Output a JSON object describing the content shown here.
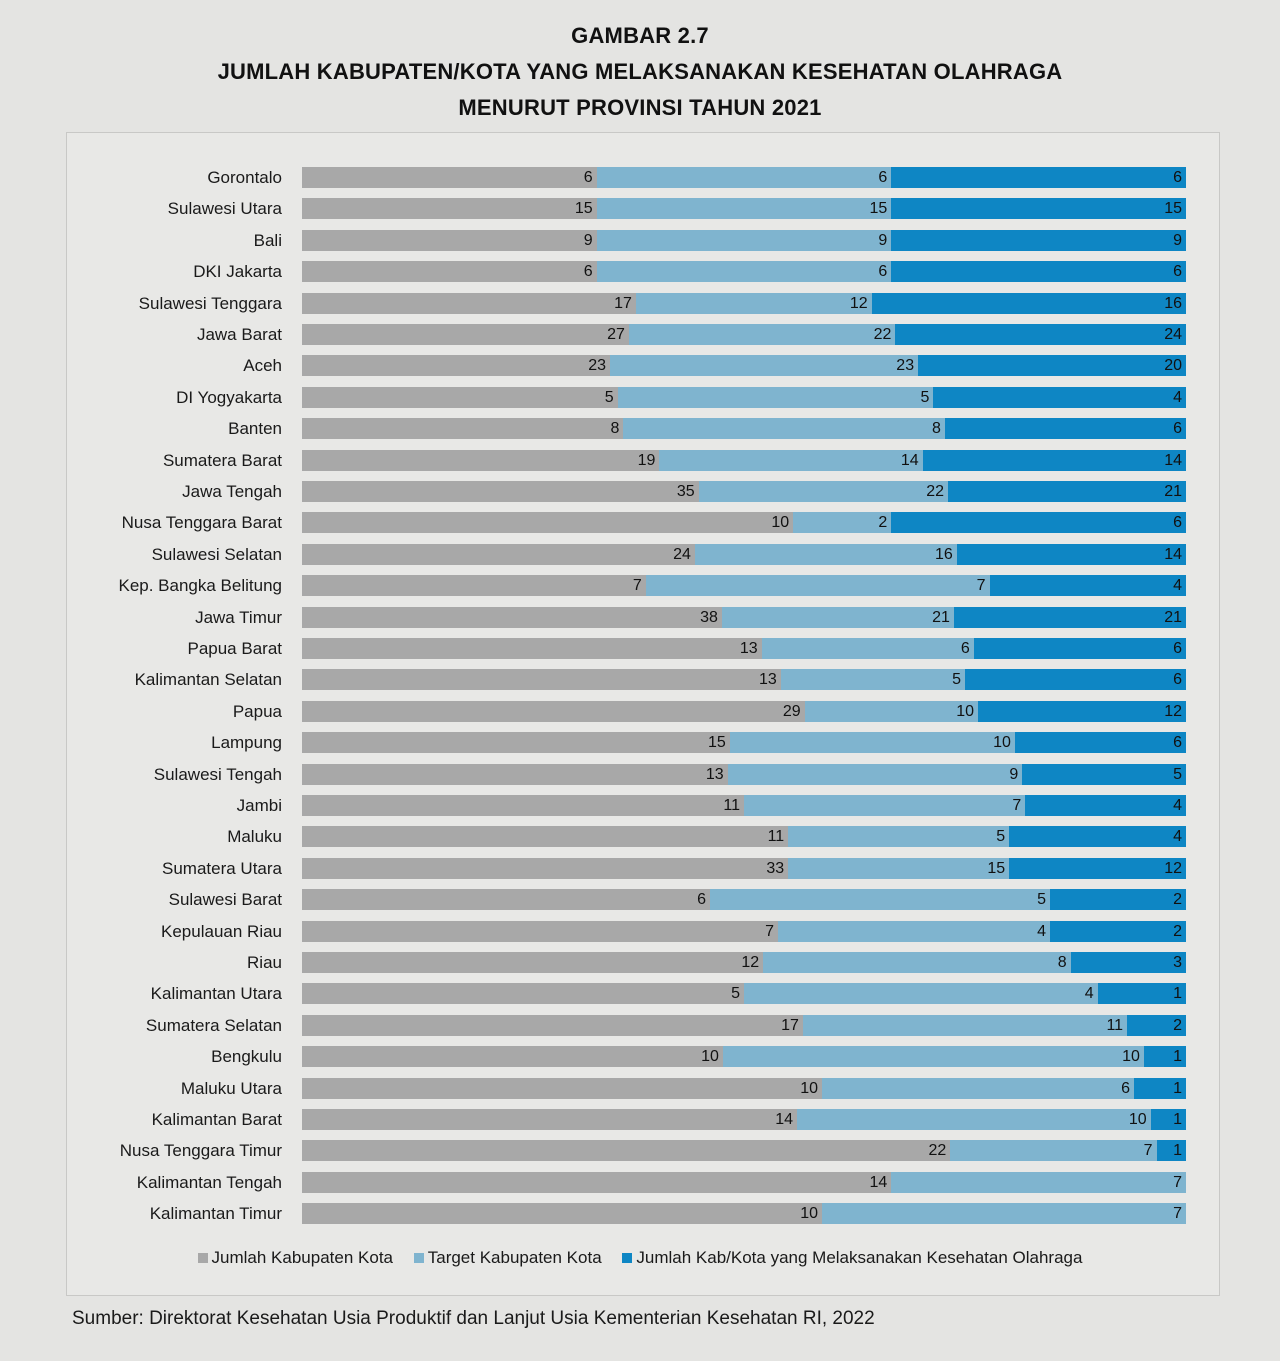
{
  "figure_number": "GAMBAR 2.7",
  "title_line1": "JUMLAH KABUPATEN/KOTA YANG MELAKSANAKAN KESEHATAN OLAHRAGA",
  "title_line2": "MENURUT PROVINSI TAHUN 2021",
  "source": "Sumber: Direktorat Kesehatan Usia Produktif dan Lanjut Usia Kementerian Kesehatan RI, 2022",
  "colors": {
    "jumlah": "#a8a8a8",
    "target": "#7fb4cf",
    "melaksanakan": "#0e86c4"
  },
  "chart_data": {
    "type": "bar",
    "orientation": "horizontal",
    "stacked": "100%",
    "title": "JUMLAH KABUPATEN/KOTA YANG MELAKSANAKAN KESEHATAN OLAHRAGA MENURUT PROVINSI TAHUN 2021",
    "xlabel": "",
    "ylabel": "",
    "grid": false,
    "legend_position": "bottom",
    "categories": [
      "Gorontalo",
      "Sulawesi Utara",
      "Bali",
      "DKI Jakarta",
      "Sulawesi Tenggara",
      "Jawa Barat",
      "Aceh",
      "DI Yogyakarta",
      "Banten",
      "Sumatera Barat",
      "Jawa Tengah",
      "Nusa Tenggara Barat",
      "Sulawesi Selatan",
      "Kep. Bangka Belitung",
      "Jawa Timur",
      "Papua Barat",
      "Kalimantan Selatan",
      "Papua",
      "Lampung",
      "Sulawesi Tengah",
      "Jambi",
      "Maluku",
      "Sumatera Utara",
      "Sulawesi Barat",
      "Kepulauan Riau",
      "Riau",
      "Kalimantan Utara",
      "Sumatera Selatan",
      "Bengkulu",
      "Maluku Utara",
      "Kalimantan Barat",
      "Nusa Tenggara Timur",
      "Kalimantan Tengah",
      "Kalimantan Timur"
    ],
    "series": [
      {
        "name": "Jumlah Kabupaten Kota",
        "values": [
          6,
          15,
          9,
          6,
          17,
          27,
          23,
          5,
          8,
          19,
          35,
          10,
          24,
          7,
          38,
          13,
          13,
          29,
          15,
          13,
          11,
          11,
          33,
          6,
          7,
          12,
          5,
          17,
          10,
          10,
          14,
          22,
          14,
          10
        ]
      },
      {
        "name": "Target Kabupaten Kota",
        "values": [
          6,
          15,
          9,
          6,
          12,
          22,
          23,
          5,
          8,
          14,
          22,
          2,
          16,
          7,
          21,
          6,
          5,
          10,
          10,
          9,
          7,
          5,
          15,
          5,
          4,
          8,
          4,
          11,
          10,
          6,
          10,
          7,
          7,
          7
        ]
      },
      {
        "name": "Jumlah Kab/Kota yang Melaksanakan Kesehatan Olahraga",
        "values": [
          6,
          15,
          9,
          6,
          16,
          24,
          20,
          4,
          6,
          14,
          21,
          6,
          14,
          4,
          21,
          6,
          6,
          12,
          6,
          5,
          4,
          4,
          12,
          2,
          2,
          3,
          1,
          2,
          1,
          1,
          1,
          1,
          0,
          0
        ]
      }
    ]
  }
}
